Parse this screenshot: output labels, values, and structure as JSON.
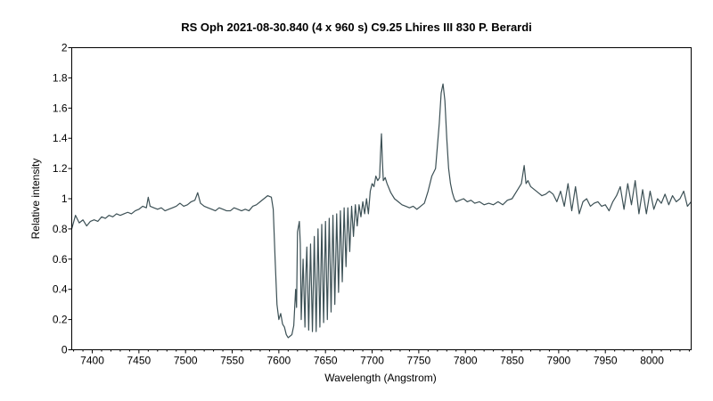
{
  "chart_data": {
    "type": "line",
    "title": "RS Oph   2021-08-30.840   (4 x 960 s)   C9.25   Lhires III 830   P. Berardi",
    "xlabel": "Wavelength (Angstrom)",
    "ylabel": "Relative intensity",
    "xlim": [
      7378,
      8042
    ],
    "ylim": [
      0,
      2
    ],
    "xticks": [
      7400,
      7450,
      7500,
      7550,
      7600,
      7650,
      7700,
      7750,
      7800,
      7850,
      7900,
      7950,
      8000
    ],
    "xtick_labels": [
      "7400",
      "7450",
      "7500",
      "7550",
      "7600",
      "7650",
      "7700",
      "7750",
      "7800",
      "7850",
      "7900",
      "7950",
      "8000"
    ],
    "yticks": [
      0,
      0.2,
      0.4,
      0.6,
      0.8,
      1,
      1.2,
      1.4,
      1.6,
      1.8,
      2
    ],
    "ytick_labels": [
      "0",
      "0.2",
      "0.4",
      "0.6",
      "0.8",
      "1",
      "1.2",
      "1.4",
      "1.6",
      "1.8",
      "2"
    ],
    "grid": false,
    "line_color": "#3c5055",
    "series": [
      {
        "x": [
          7378,
          7382,
          7386,
          7390,
          7394,
          7398,
          7402,
          7406,
          7410,
          7414,
          7418,
          7422,
          7426,
          7430,
          7434,
          7438,
          7442,
          7446,
          7450,
          7454,
          7458,
          7460,
          7462,
          7466,
          7470,
          7474,
          7478,
          7482,
          7486,
          7490,
          7494,
          7498,
          7502,
          7506,
          7510,
          7513,
          7516,
          7520,
          7524,
          7528,
          7532,
          7536,
          7540,
          7544,
          7548,
          7552,
          7556,
          7560,
          7564,
          7568,
          7572,
          7576,
          7580,
          7584,
          7588,
          7592,
          7594,
          7596,
          7598,
          7600,
          7602,
          7604,
          7606,
          7608,
          7610,
          7612,
          7614,
          7616,
          7618,
          7619,
          7620,
          7622,
          7623,
          7624,
          7626,
          7628,
          7629,
          7630,
          7632,
          7634,
          7636,
          7638,
          7640,
          7642,
          7644,
          7646,
          7648,
          7650,
          7652,
          7654,
          7656,
          7658,
          7660,
          7662,
          7664,
          7666,
          7668,
          7670,
          7672,
          7674,
          7676,
          7678,
          7680,
          7682,
          7684,
          7686,
          7688,
          7690,
          7692,
          7694,
          7696,
          7698,
          7700,
          7702,
          7704,
          7706,
          7708,
          7709,
          7710,
          7711,
          7712,
          7714,
          7716,
          7718,
          7720,
          7724,
          7728,
          7732,
          7736,
          7740,
          7744,
          7748,
          7752,
          7756,
          7760,
          7764,
          7768,
          7770,
          7772,
          7774,
          7776,
          7778,
          7780,
          7782,
          7784,
          7786,
          7788,
          7790,
          7794,
          7798,
          7802,
          7806,
          7810,
          7815,
          7820,
          7825,
          7830,
          7835,
          7840,
          7845,
          7850,
          7855,
          7860,
          7863,
          7865,
          7867,
          7870,
          7874,
          7878,
          7882,
          7886,
          7890,
          7894,
          7898,
          7902,
          7906,
          7910,
          7914,
          7918,
          7922,
          7926,
          7930,
          7934,
          7938,
          7942,
          7946,
          7950,
          7954,
          7958,
          7962,
          7966,
          7970,
          7974,
          7978,
          7982,
          7986,
          7990,
          7994,
          7998,
          8002,
          8006,
          8010,
          8014,
          8018,
          8022,
          8026,
          8030,
          8034,
          8038,
          8042
        ],
        "y": [
          0.8,
          0.89,
          0.84,
          0.86,
          0.82,
          0.85,
          0.86,
          0.85,
          0.88,
          0.87,
          0.89,
          0.88,
          0.9,
          0.89,
          0.9,
          0.91,
          0.9,
          0.92,
          0.93,
          0.95,
          0.94,
          1.01,
          0.95,
          0.94,
          0.93,
          0.94,
          0.92,
          0.93,
          0.94,
          0.95,
          0.97,
          0.95,
          0.96,
          0.98,
          0.99,
          1.04,
          0.97,
          0.95,
          0.94,
          0.93,
          0.92,
          0.94,
          0.93,
          0.92,
          0.92,
          0.94,
          0.93,
          0.92,
          0.93,
          0.92,
          0.95,
          0.96,
          0.98,
          1.0,
          1.02,
          1.01,
          0.93,
          0.6,
          0.3,
          0.2,
          0.24,
          0.17,
          0.15,
          0.1,
          0.08,
          0.09,
          0.1,
          0.16,
          0.4,
          0.28,
          0.78,
          0.85,
          0.7,
          0.2,
          0.6,
          0.15,
          0.5,
          0.68,
          0.13,
          0.7,
          0.12,
          0.75,
          0.12,
          0.8,
          0.15,
          0.83,
          0.18,
          0.85,
          0.2,
          0.87,
          0.25,
          0.89,
          0.3,
          0.9,
          0.38,
          0.92,
          0.45,
          0.94,
          0.55,
          0.94,
          0.65,
          0.95,
          0.75,
          0.96,
          0.82,
          0.96,
          0.88,
          0.98,
          0.9,
          1.0,
          0.9,
          1.05,
          1.1,
          1.08,
          1.15,
          1.12,
          1.14,
          1.3,
          1.43,
          1.25,
          1.12,
          1.14,
          1.1,
          1.07,
          1.04,
          1.0,
          0.98,
          0.96,
          0.95,
          0.94,
          0.95,
          0.93,
          0.95,
          0.97,
          1.05,
          1.15,
          1.2,
          1.35,
          1.5,
          1.7,
          1.76,
          1.65,
          1.4,
          1.2,
          1.1,
          1.04,
          1.0,
          0.98,
          0.99,
          1.0,
          0.98,
          0.99,
          0.97,
          0.98,
          0.96,
          0.97,
          0.96,
          0.98,
          0.96,
          0.99,
          1.0,
          1.05,
          1.1,
          1.22,
          1.1,
          1.12,
          1.08,
          1.06,
          1.04,
          1.02,
          1.03,
          1.05,
          1.03,
          0.98,
          1.05,
          0.95,
          1.1,
          0.92,
          1.08,
          0.9,
          0.98,
          1.0,
          0.95,
          0.97,
          0.98,
          0.95,
          0.96,
          0.92,
          0.98,
          1.02,
          1.08,
          0.93,
          1.1,
          0.96,
          1.12,
          0.9,
          1.06,
          0.9,
          1.05,
          0.93,
          1.0,
          0.97,
          1.03,
          0.96,
          1.02,
          0.98,
          1.0,
          1.05,
          0.95,
          0.98
        ]
      }
    ]
  }
}
